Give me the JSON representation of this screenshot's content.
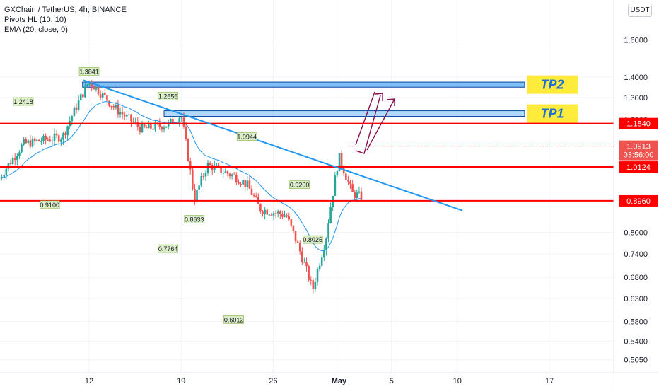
{
  "header": {
    "symbol": "GXChain / TetherUS, 4h, BINANCE",
    "pivots": "Pivots HL (10, 10)",
    "ema": "EMA (20, close, 0)",
    "currency": "USDT"
  },
  "colors": {
    "up": "#26a69a",
    "down": "#ef5350",
    "trendline": "#2196f3",
    "support": "#ff0000",
    "ema": "#2196f3",
    "tp_zone": "#64b5f6",
    "tp_label_bg": "#ffeb3b",
    "arrow": "#880e4f",
    "current_price": "#ef5350"
  },
  "chart_data": {
    "type": "candlestick",
    "title": "GXChain / TetherUS, 4h, BINANCE",
    "y_scale": "log",
    "y_ticks": [
      "1.6000",
      "1.4000",
      "1.3000",
      "1.2000",
      "0.8000",
      "0.7400",
      "0.6800",
      "0.6300",
      "0.5800",
      "0.5400",
      "0.5050"
    ],
    "x_ticks": [
      "12",
      "19",
      "26",
      "May",
      "5",
      "10",
      "17"
    ],
    "pivot_labels": [
      {
        "text": "1.3841",
        "kind": "high",
        "x": "Apr 12"
      },
      {
        "text": "1.2656",
        "kind": "high",
        "x": "Apr 18"
      },
      {
        "text": "1.2418",
        "kind": "high",
        "x": "Apr 7"
      },
      {
        "text": "1.0944",
        "kind": "high",
        "x": "Apr 24"
      },
      {
        "text": "0.9200",
        "kind": "high",
        "x": "Apr 28"
      },
      {
        "text": "0.9100",
        "kind": "low",
        "x": "Apr 9"
      },
      {
        "text": "0.8633",
        "kind": "low",
        "x": "Apr 20"
      },
      {
        "text": "0.7764",
        "kind": "low",
        "x": "Apr 18"
      },
      {
        "text": "0.8025",
        "kind": "low",
        "x": "Apr 29"
      },
      {
        "text": "0.6012",
        "kind": "low",
        "x": "Apr 23"
      }
    ],
    "horizontal_levels": [
      {
        "price": "1.1840"
      },
      {
        "price": "1.0124"
      },
      {
        "price": "0.8960"
      }
    ],
    "current_price": {
      "price": "1.0913",
      "countdown": "03:56:00"
    },
    "targets": [
      {
        "name": "TP2",
        "from": 1.35,
        "to": 1.375
      },
      {
        "name": "TP1",
        "from": 1.215,
        "to": 1.24
      }
    ],
    "trendline": {
      "from": {
        "x": "Apr 12",
        "price": 1.3841
      },
      "to": {
        "x": "May 9",
        "price": 0.865
      }
    },
    "ema_period": 20,
    "series": [
      {
        "seed": 7
      }
    ]
  }
}
